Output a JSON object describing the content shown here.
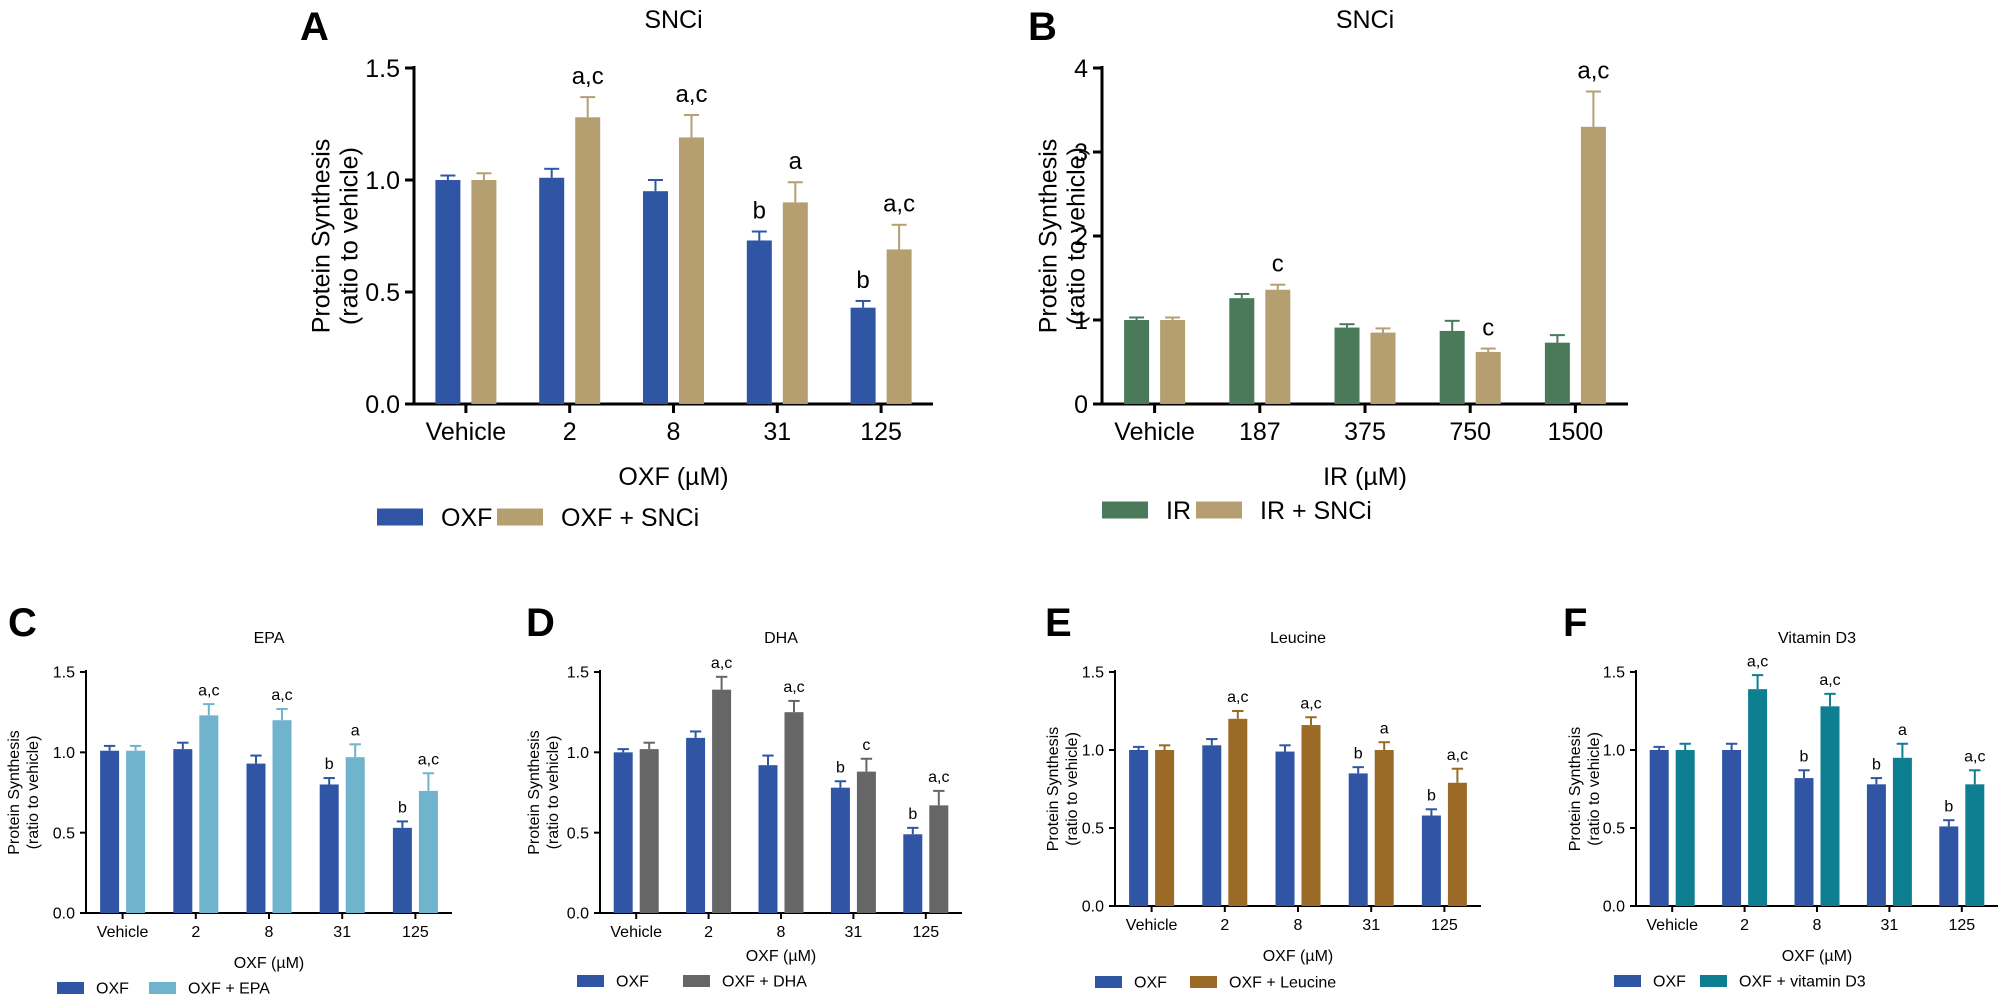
{
  "chart_data": [
    {
      "panel": "A",
      "type": "bar",
      "title": "SNCi",
      "xlabel": "OXF (µM)",
      "ylabel": [
        "Protein Synthesis",
        "(ratio to vehicle)"
      ],
      "ylim": [
        0,
        1.5
      ],
      "yticks": [
        "0.0",
        "0.5",
        "1.0",
        "1.5"
      ],
      "categories": [
        "Vehicle",
        "2",
        "8",
        "31",
        "125"
      ],
      "series": [
        {
          "name": "OXF",
          "color": "#2f55a4",
          "values": [
            1.0,
            1.01,
            0.95,
            0.73,
            0.43
          ],
          "errors": [
            0.02,
            0.04,
            0.05,
            0.04,
            0.03
          ],
          "annotations": [
            "",
            "",
            "",
            "b",
            "b"
          ]
        },
        {
          "name": "OXF + SNCi",
          "color": "#b59f71",
          "values": [
            1.0,
            1.28,
            1.19,
            0.9,
            0.69
          ],
          "errors": [
            0.03,
            0.09,
            0.1,
            0.09,
            0.11
          ],
          "annotations": [
            "",
            "a,c",
            "a,c",
            "a",
            "a,c"
          ]
        }
      ],
      "legend": "bottom"
    },
    {
      "panel": "B",
      "type": "bar",
      "title": "SNCi",
      "xlabel": "IR (µM)",
      "ylabel": [
        "Protein Synthesis",
        "(ratio to vehicle)"
      ],
      "ylim": [
        0,
        4
      ],
      "yticks": [
        "0",
        "1",
        "2",
        "3",
        "4"
      ],
      "categories": [
        "Vehicle",
        "187",
        "375",
        "750",
        "1500"
      ],
      "series": [
        {
          "name": "IR",
          "color": "#4a7a5a",
          "values": [
            1.0,
            1.26,
            0.91,
            0.87,
            0.73
          ],
          "errors": [
            0.03,
            0.05,
            0.04,
            0.12,
            0.09
          ],
          "annotations": [
            "",
            "",
            "",
            "",
            ""
          ]
        },
        {
          "name": "IR + SNCi",
          "color": "#b59f71",
          "values": [
            1.0,
            1.36,
            0.85,
            0.62,
            3.3
          ],
          "errors": [
            0.03,
            0.06,
            0.05,
            0.04,
            0.42
          ],
          "annotations": [
            "",
            "c",
            "",
            "c",
            "a,c"
          ]
        }
      ],
      "legend": "bottom"
    },
    {
      "panel": "C",
      "type": "bar",
      "title": "EPA",
      "xlabel": "OXF (µM)",
      "ylabel": [
        "Protein Synthesis",
        "(ratio to vehicle)"
      ],
      "ylim": [
        0,
        1.5
      ],
      "yticks": [
        "0.0",
        "0.5",
        "1.0",
        "1.5"
      ],
      "categories": [
        "Vehicle",
        "2",
        "8",
        "31",
        "125"
      ],
      "series": [
        {
          "name": "OXF",
          "color": "#2f55a4",
          "values": [
            1.01,
            1.02,
            0.93,
            0.8,
            0.53
          ],
          "errors": [
            0.03,
            0.04,
            0.05,
            0.04,
            0.04
          ],
          "annotations": [
            "",
            "",
            "",
            "b",
            "b"
          ]
        },
        {
          "name": "OXF + EPA",
          "color": "#70b3cc",
          "values": [
            1.01,
            1.23,
            1.2,
            0.97,
            0.76
          ],
          "errors": [
            0.03,
            0.07,
            0.07,
            0.08,
            0.11
          ],
          "annotations": [
            "",
            "a,c",
            "a,c",
            "a",
            "a,c"
          ]
        }
      ],
      "legend": "bottom"
    },
    {
      "panel": "D",
      "type": "bar",
      "title": "DHA",
      "xlabel": "OXF (µM)",
      "ylabel": [
        "Protein Synthesis",
        "(ratio to vehicle)"
      ],
      "ylim": [
        0,
        1.5
      ],
      "yticks": [
        "0.0",
        "0.5",
        "1.0",
        "1.5"
      ],
      "categories": [
        "Vehicle",
        "2",
        "8",
        "31",
        "125"
      ],
      "series": [
        {
          "name": "OXF",
          "color": "#2f55a4",
          "values": [
            1.0,
            1.09,
            0.92,
            0.78,
            0.49
          ],
          "errors": [
            0.02,
            0.04,
            0.06,
            0.04,
            0.04
          ],
          "annotations": [
            "",
            "",
            "",
            "b",
            "b"
          ]
        },
        {
          "name": "OXF + DHA",
          "color": "#666666",
          "values": [
            1.02,
            1.39,
            1.25,
            0.88,
            0.67
          ],
          "errors": [
            0.04,
            0.08,
            0.07,
            0.08,
            0.09
          ],
          "annotations": [
            "",
            "a,c",
            "a,c",
            "c",
            "a,c"
          ]
        }
      ],
      "legend": "bottom"
    },
    {
      "panel": "E",
      "type": "bar",
      "title": "Leucine",
      "xlabel": "OXF (µM)",
      "ylabel": [
        "Protein Synthesis",
        "(ratio to vehicle)"
      ],
      "ylim": [
        0,
        1.5
      ],
      "yticks": [
        "0.0",
        "0.5",
        "1.0",
        "1.5"
      ],
      "categories": [
        "Vehicle",
        "2",
        "8",
        "31",
        "125"
      ],
      "series": [
        {
          "name": "OXF",
          "color": "#2f55a4",
          "values": [
            1.0,
            1.03,
            0.99,
            0.85,
            0.58
          ],
          "errors": [
            0.02,
            0.04,
            0.04,
            0.04,
            0.04
          ],
          "annotations": [
            "",
            "",
            "",
            "b",
            "b"
          ]
        },
        {
          "name": "OXF + Leucine",
          "color": "#9a6a26",
          "values": [
            1.0,
            1.2,
            1.16,
            1.0,
            0.79
          ],
          "errors": [
            0.03,
            0.05,
            0.05,
            0.05,
            0.09
          ],
          "annotations": [
            "",
            "a,c",
            "a,c",
            "a",
            "a,c"
          ]
        }
      ],
      "legend": "bottom"
    },
    {
      "panel": "F",
      "type": "bar",
      "title": "Vitamin D3",
      "xlabel": "OXF (µM)",
      "ylabel": [
        "Protein Synthesis",
        "(ratio to vehicle)"
      ],
      "ylim": [
        0,
        1.5
      ],
      "yticks": [
        "0.0",
        "0.5",
        "1.0",
        "1.5"
      ],
      "categories": [
        "Vehicle",
        "2",
        "8",
        "31",
        "125"
      ],
      "series": [
        {
          "name": "OXF",
          "color": "#2f55a4",
          "values": [
            1.0,
            1.0,
            0.82,
            0.78,
            0.51
          ],
          "errors": [
            0.02,
            0.04,
            0.05,
            0.04,
            0.04
          ],
          "annotations": [
            "",
            "",
            "b",
            "b",
            "b"
          ]
        },
        {
          "name": "OXF + vitamin D3",
          "color": "#0e7f91",
          "values": [
            1.0,
            1.39,
            1.28,
            0.95,
            0.78
          ],
          "errors": [
            0.04,
            0.09,
            0.08,
            0.09,
            0.09
          ],
          "annotations": [
            "",
            "a,c",
            "a,c",
            "a",
            "a,c"
          ]
        }
      ],
      "legend": "bottom"
    }
  ]
}
